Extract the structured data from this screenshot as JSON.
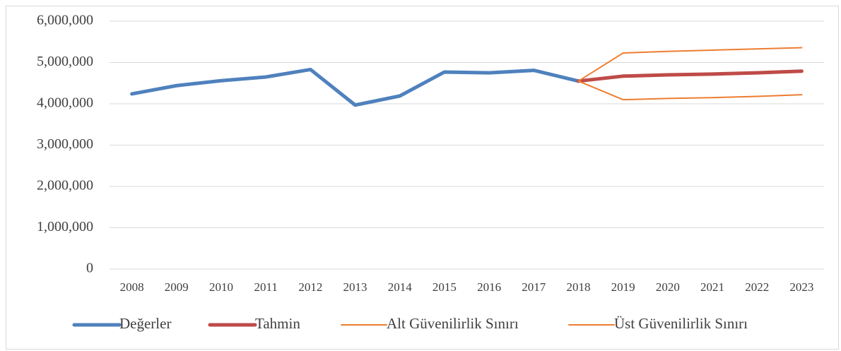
{
  "chart_data": {
    "type": "line",
    "categories": [
      "2008",
      "2009",
      "2010",
      "2011",
      "2012",
      "2013",
      "2014",
      "2015",
      "2016",
      "2017",
      "2018",
      "2019",
      "2020",
      "2021",
      "2022",
      "2023"
    ],
    "series": [
      {
        "name": "Değerler",
        "color": "#4f81bd",
        "width": 5,
        "values": [
          4240000,
          4440000,
          4560000,
          4650000,
          4830000,
          3970000,
          4190000,
          4770000,
          4750000,
          4810000,
          4550000,
          null,
          null,
          null,
          null,
          null
        ]
      },
      {
        "name": "Tahmin",
        "color": "#be4b48",
        "width": 5,
        "values": [
          null,
          null,
          null,
          null,
          null,
          null,
          null,
          null,
          null,
          null,
          4550000,
          4670000,
          4700000,
          4720000,
          4750000,
          4790000
        ]
      },
      {
        "name": "Alt Güvenilirlik Sınırı",
        "color": "#ed7d31",
        "width": 2,
        "values": [
          null,
          null,
          null,
          null,
          null,
          null,
          null,
          null,
          null,
          null,
          4550000,
          4100000,
          4130000,
          4150000,
          4180000,
          4220000
        ]
      },
      {
        "name": "Üst Güvenilirlik Sınırı",
        "color": "#ed7d31",
        "width": 2,
        "values": [
          null,
          null,
          null,
          null,
          null,
          null,
          null,
          null,
          null,
          null,
          4550000,
          5230000,
          5270000,
          5300000,
          5330000,
          5360000
        ]
      }
    ],
    "ylim": [
      0,
      6000000
    ],
    "yticks": [
      0,
      {
        "value": 1000000,
        "label": "1,000,000"
      },
      {
        "value": 2000000,
        "label": "2,000,000"
      },
      {
        "value": 3000000,
        "label": "3,000,000"
      },
      {
        "value": 4000000,
        "label": "4,000,000"
      },
      {
        "value": 5000000,
        "label": "5,000,000"
      },
      {
        "value": 6000000,
        "label": "6,000,000"
      }
    ],
    "grid": true,
    "legend": "bottom"
  }
}
